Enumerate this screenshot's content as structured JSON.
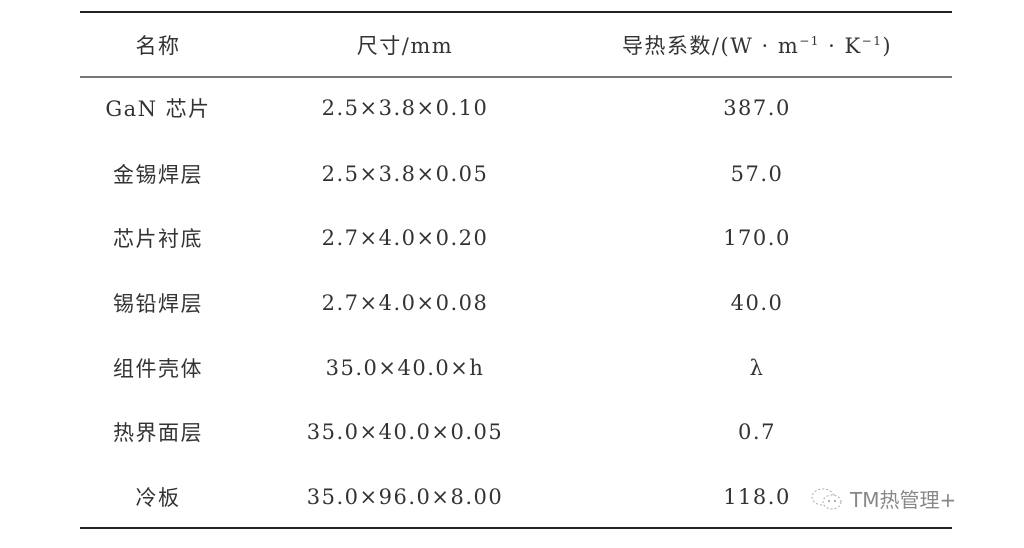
{
  "table": {
    "headers": [
      "名称",
      "尺寸/mm",
      "导热系数/(W · m",
      "−1",
      " · K",
      "−1",
      ")"
    ],
    "rows": [
      [
        "GaN 芯片",
        "2.5×3.8×0.10",
        "387.0"
      ],
      [
        "金锡焊层",
        "2.5×3.8×0.05",
        "57.0"
      ],
      [
        "芯片衬底",
        "2.7×4.0×0.20",
        "170.0"
      ],
      [
        "锡铅焊层",
        "2.7×4.0×0.08",
        "40.0"
      ],
      [
        "组件壳体",
        "35.0×40.0×h",
        "λ"
      ],
      [
        "热界面层",
        "35.0×40.0×0.05",
        "0.7"
      ],
      [
        "冷板",
        "35.0×96.0×8.00",
        "118.0"
      ]
    ]
  },
  "watermark": {
    "text": "TM热管理+",
    "icon": "wechat-icon"
  }
}
